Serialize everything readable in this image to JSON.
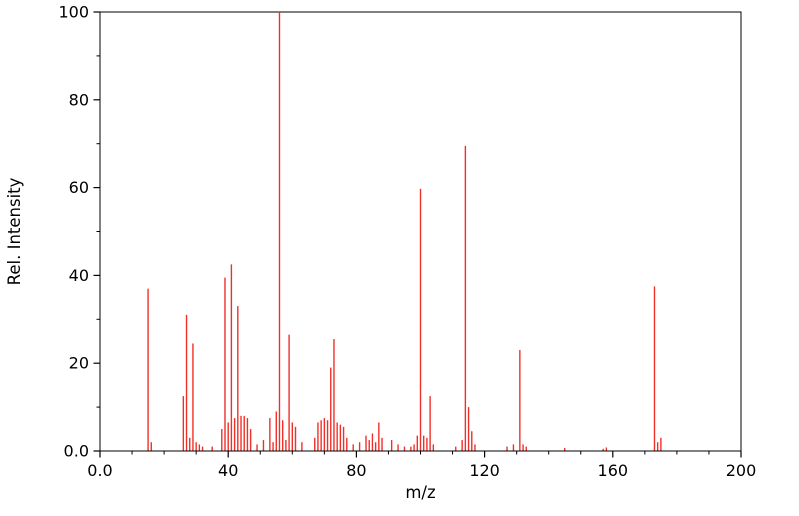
{
  "chart_data": {
    "type": "bar",
    "subtype": "mass-spectrum-sticks",
    "title": "",
    "xlabel": "m/z",
    "ylabel": "Rel. Intensity",
    "xlim": [
      0,
      200
    ],
    "ylim": [
      0,
      100
    ],
    "grid": false,
    "legend": "none",
    "stick_color": "#f03028",
    "frame_color": "#000000",
    "x_ticks": {
      "values": [
        0,
        40,
        80,
        120,
        160,
        200
      ],
      "labels": [
        "0.0",
        "40",
        "80",
        "120",
        "160",
        "200"
      ],
      "minor_step": 10
    },
    "y_ticks": {
      "values": [
        0,
        20,
        40,
        60,
        80,
        100
      ],
      "labels": [
        "0.0",
        "20",
        "40",
        "60",
        "80",
        "100"
      ],
      "minor_step": 10
    },
    "peaks": [
      [
        15,
        37
      ],
      [
        16,
        2
      ],
      [
        26,
        12.5
      ],
      [
        27,
        31
      ],
      [
        28,
        3
      ],
      [
        29,
        24.5
      ],
      [
        30,
        2
      ],
      [
        31,
        1.5
      ],
      [
        32,
        1
      ],
      [
        35,
        1
      ],
      [
        38,
        5
      ],
      [
        39,
        39.5
      ],
      [
        40,
        6.5
      ],
      [
        41,
        42.5
      ],
      [
        42,
        7.5
      ],
      [
        43,
        33
      ],
      [
        44,
        8
      ],
      [
        45,
        8
      ],
      [
        46,
        7.5
      ],
      [
        47,
        5
      ],
      [
        49,
        1.5
      ],
      [
        51,
        2.5
      ],
      [
        53,
        7.5
      ],
      [
        54,
        2
      ],
      [
        55,
        9
      ],
      [
        56,
        100
      ],
      [
        57,
        7
      ],
      [
        58,
        2.5
      ],
      [
        59,
        26.5
      ],
      [
        60,
        6.5
      ],
      [
        61,
        5.5
      ],
      [
        63,
        2
      ],
      [
        67,
        3
      ],
      [
        68,
        6.5
      ],
      [
        69,
        7
      ],
      [
        70,
        7.5
      ],
      [
        71,
        7
      ],
      [
        72,
        19
      ],
      [
        73,
        25.5
      ],
      [
        74,
        6.5
      ],
      [
        75,
        6
      ],
      [
        76,
        5.5
      ],
      [
        77,
        3
      ],
      [
        79,
        1.5
      ],
      [
        81,
        2
      ],
      [
        83,
        3.5
      ],
      [
        84,
        2.5
      ],
      [
        85,
        4
      ],
      [
        86,
        2
      ],
      [
        87,
        6.5
      ],
      [
        88,
        3
      ],
      [
        91,
        2.5
      ],
      [
        93,
        1.5
      ],
      [
        95,
        1
      ],
      [
        97,
        1
      ],
      [
        98,
        1.5
      ],
      [
        99,
        3.5
      ],
      [
        100,
        59.7
      ],
      [
        101,
        3.5
      ],
      [
        102,
        3
      ],
      [
        103,
        12.5
      ],
      [
        104,
        1.5
      ],
      [
        111,
        1
      ],
      [
        113,
        2.5
      ],
      [
        114,
        69.5
      ],
      [
        115,
        10
      ],
      [
        116,
        4.5
      ],
      [
        117,
        1.5
      ],
      [
        127,
        1
      ],
      [
        129,
        1.5
      ],
      [
        131,
        23
      ],
      [
        132,
        1.5
      ],
      [
        133,
        1
      ],
      [
        145,
        0.7
      ],
      [
        157,
        0.5
      ],
      [
        158,
        0.8
      ],
      [
        173,
        37.5
      ],
      [
        174,
        2
      ],
      [
        175,
        3
      ]
    ]
  }
}
